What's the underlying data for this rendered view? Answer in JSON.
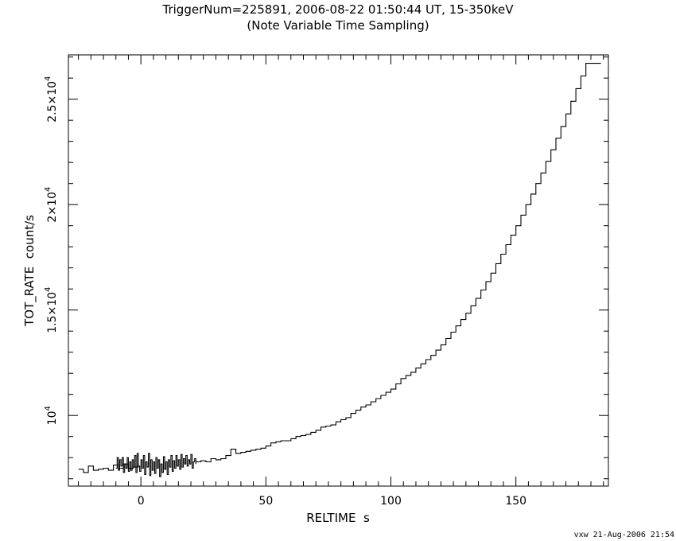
{
  "chart_data": {
    "type": "line",
    "title": "TriggerNum=225891, 2006-08-22 01:50:44 UT, 15-350keV",
    "subtitle": "(Note Variable Time Sampling)",
    "xlabel": "RELTIME  s",
    "ylabel": "TOT_RATE  count/s",
    "xlim": [
      -29,
      187
    ],
    "ylim": [
      6650,
      27100
    ],
    "x_ticks": [
      0,
      50,
      100,
      150
    ],
    "x_tick_labels": [
      "0",
      "50",
      "100",
      "150"
    ],
    "y_ticks": [
      10000,
      15000,
      20000,
      25000
    ],
    "y_tick_labels": [
      {
        "mantissa": "",
        "exp": "4"
      },
      {
        "mantissa": "1.5×",
        "exp": "4"
      },
      {
        "mantissa": "2×",
        "exp": "4"
      },
      {
        "mantissa": "2.5×",
        "exp": "4"
      }
    ],
    "grid": false,
    "series": [
      {
        "step": "post",
        "segments": [
          {
            "x": [
              -25,
              -23,
              -21,
              -19,
              -17,
              -15,
              -13,
              -11,
              -9,
              -7,
              -5,
              -3,
              -1
            ],
            "y": [
              7450,
              7300,
              7600,
              7400,
              7450,
              7500,
              7400,
              7650,
              7500,
              7700,
              7500,
              7550,
              7700
            ]
          },
          {
            "x": [
              -10,
              -9.5,
              -9,
              -8.5,
              -8,
              -7.5,
              -7,
              -6.5,
              -6,
              -5.5,
              -5,
              -4.5,
              -4,
              -3.5,
              -3,
              -2.5,
              -2,
              -1.5,
              -1,
              -0.5,
              0,
              0.5,
              1,
              1.5,
              2,
              2.5,
              3,
              3.5,
              4,
              4.5,
              5,
              5.5,
              6,
              6.5,
              7,
              7.5,
              8,
              8.5,
              9,
              9.5,
              10,
              10.5,
              11,
              11.5,
              12,
              12.5,
              13,
              13.5,
              14,
              14.5,
              15,
              15.5,
              16,
              16.5,
              17,
              17.5,
              18,
              18.5,
              19,
              19.5,
              20,
              20.5,
              21,
              21.5,
              22
            ],
            "y": [
              7500,
              8000,
              7400,
              7900,
              7600,
              8000,
              7300,
              7700,
              7500,
              8000,
              7350,
              7800,
              7400,
              7900,
              7550,
              8100,
              7300,
              8200,
              7600,
              7350,
              7900,
              7500,
              8100,
              7200,
              7800,
              7550,
              8200,
              7150,
              7900,
              7400,
              7800,
              7250,
              8000,
              7500,
              7900,
              7100,
              7700,
              7300,
              8050,
              7450,
              7800,
              7200,
              7900,
              7550,
              8100,
              7350,
              7850,
              7500,
              8100,
              7600,
              7900,
              7450,
              8150,
              7550,
              7950,
              7700,
              8100,
              7600,
              7900,
              7700,
              8150,
              7500,
              7800,
              7950,
              7700
            ]
          },
          {
            "x": [
              22,
              24,
              26,
              28,
              30,
              32,
              34,
              36,
              38,
              40,
              42,
              44,
              46,
              48,
              50,
              52,
              54,
              56,
              58,
              60,
              62,
              64,
              66,
              68,
              70,
              72,
              74,
              76,
              78,
              80,
              82,
              84,
              86,
              88,
              90,
              92,
              94,
              96,
              98,
              100,
              102,
              104,
              106,
              108,
              110,
              112,
              114,
              116,
              118,
              120,
              122,
              124,
              126,
              128,
              130,
              132,
              134,
              136,
              138,
              140,
              142,
              144,
              146,
              148,
              150,
              152,
              154,
              156,
              158,
              160,
              162,
              164,
              166,
              168,
              170,
              172,
              174,
              176,
              178,
              180,
              182,
              184
            ],
            "y": [
              7800,
              7850,
              7800,
              7950,
              7900,
              7950,
              8100,
              8400,
              8200,
              8250,
              8300,
              8350,
              8400,
              8450,
              8550,
              8700,
              8750,
              8800,
              8800,
              8900,
              9000,
              9050,
              9100,
              9200,
              9300,
              9450,
              9500,
              9550,
              9700,
              9800,
              9900,
              10100,
              10250,
              10400,
              10500,
              10650,
              10800,
              10950,
              11100,
              11250,
              11500,
              11750,
              11900,
              12050,
              12250,
              12450,
              12650,
              12850,
              13100,
              13350,
              13650,
              13950,
              14250,
              14550,
              14850,
              15200,
              15550,
              15950,
              16350,
              16750,
              17200,
              17650,
              18100,
              18550,
              19000,
              19500,
              20000,
              20500,
              21000,
              21500,
              22050,
              22600,
              23150,
              23700,
              24300,
              24900,
              25500,
              26100,
              26700,
              26700,
              26700,
              26700
            ]
          }
        ]
      }
    ]
  },
  "footer": "vxw 21-Aug-2006 21:54"
}
